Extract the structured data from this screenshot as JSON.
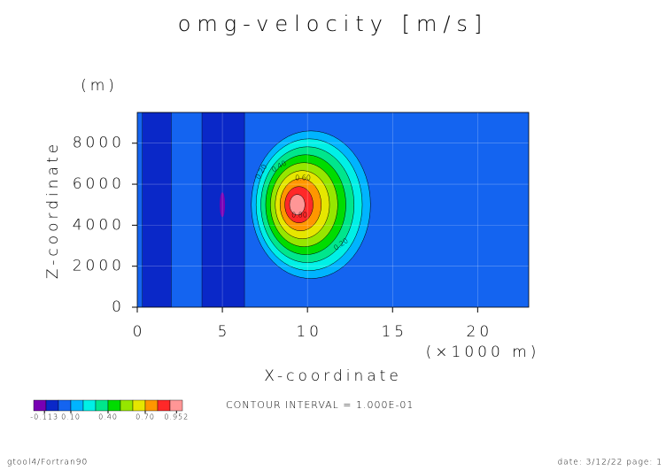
{
  "chart_data": {
    "type": "contour",
    "title": "omg-velocity [m/s]",
    "x_label": "X-coordinate",
    "x_unit": "(×1000 m)",
    "y_label": "Z-coordinate",
    "y_unit": "(m)",
    "xlim": [
      0,
      23
    ],
    "ylim": [
      0,
      9500
    ],
    "xticks": [
      0,
      5,
      10,
      15,
      20
    ],
    "yticks": [
      0,
      2000,
      4000,
      6000,
      8000
    ],
    "grid": true,
    "contour_labels": [
      "0.20",
      "0.40",
      "0.60",
      "0.80",
      "0.20"
    ],
    "colorbar": {
      "colors": [
        "#7800b4",
        "#0a28c8",
        "#1464f0",
        "#00b4ff",
        "#00f0e6",
        "#00e68c",
        "#00dc00",
        "#96e600",
        "#e6e600",
        "#ff9600",
        "#ff2828",
        "#ff9696"
      ],
      "lim": [
        -0.2,
        1.0
      ],
      "ticks": [
        {
          "value": -0.113,
          "label": "-0.113"
        },
        {
          "value": 0.1,
          "label": "0.10"
        },
        {
          "value": 0.4,
          "label": "0.40"
        },
        {
          "value": 0.7,
          "label": "0.70"
        },
        {
          "value": 0.952,
          "label": "0.952"
        }
      ]
    },
    "note": "CONTOUR INTERVAL = 1.000E-01"
  },
  "footer": {
    "left": "gtool4/Fortran90",
    "right": "date: 3/12/22 page: 1"
  }
}
